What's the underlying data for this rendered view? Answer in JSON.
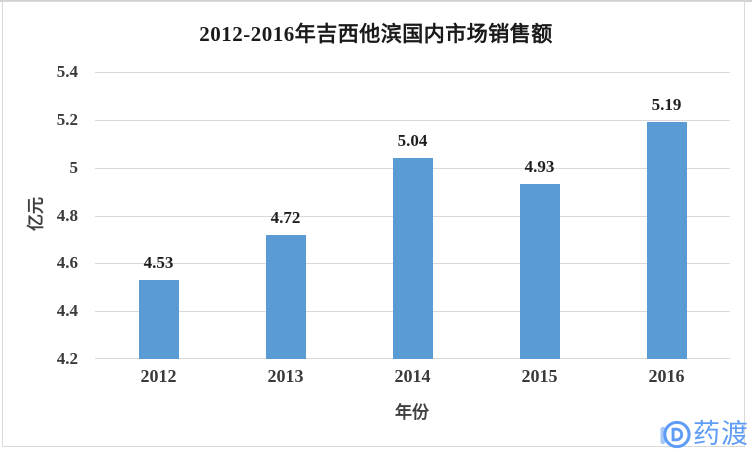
{
  "title": "2012-2016年吉西他滨国内市场销售额",
  "watermark": {
    "icon": "pharmacodia-d-icon",
    "text": "药渡",
    "color": "#5e9cf5",
    "accent_color": "#a9c8f8"
  },
  "chart_data": {
    "type": "bar",
    "title": "2012-2016年吉西他滨国内市场销售额",
    "categories": [
      "2012",
      "2013",
      "2014",
      "2015",
      "2016"
    ],
    "values": [
      4.53,
      4.72,
      5.04,
      4.93,
      5.19
    ],
    "data_labels": [
      "4.53",
      "4.72",
      "5.04",
      "4.93",
      "5.19"
    ],
    "xlabel": "年份",
    "ylabel": "亿元",
    "ylim": [
      4.2,
      5.4
    ],
    "yticks": [
      "5.4",
      "5.2",
      "5",
      "4.8",
      "4.6",
      "4.4",
      "4.2"
    ],
    "grid": true,
    "legend": false,
    "bar_color": "#5b9bd5",
    "gridline_color": "#d9d9d9",
    "background": "#ffffff"
  }
}
